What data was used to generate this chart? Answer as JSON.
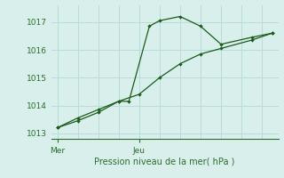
{
  "title": "Pression niveau de la mer( hPa )",
  "background_color": "#d8efec",
  "grid_color": "#b8ddd8",
  "line_color": "#1a5c1a",
  "marker_color": "#1a5c1a",
  "axis_color": "#2d6e2d",
  "text_color": "#2d6e2d",
  "ylim": [
    1012.8,
    1017.6
  ],
  "yticks": [
    1013,
    1014,
    1015,
    1016,
    1017
  ],
  "xlim": [
    -0.3,
    10.8
  ],
  "mer_x": 0.0,
  "jeu_x": 4.0,
  "line1_x": [
    0.0,
    1.0,
    2.0,
    3.0,
    3.5,
    4.5,
    5.0,
    6.0,
    7.0,
    8.0,
    9.5,
    10.5
  ],
  "line1_y": [
    1013.2,
    1013.55,
    1013.85,
    1014.15,
    1014.15,
    1016.85,
    1017.05,
    1017.2,
    1016.85,
    1016.2,
    1016.45,
    1016.6
  ],
  "line2_x": [
    0.0,
    1.0,
    2.0,
    3.0,
    4.0,
    5.0,
    6.0,
    7.0,
    8.0,
    9.5,
    10.5
  ],
  "line2_y": [
    1013.2,
    1013.45,
    1013.75,
    1014.15,
    1014.4,
    1015.0,
    1015.5,
    1015.85,
    1016.05,
    1016.35,
    1016.6
  ],
  "marker1_x": [
    0.0,
    1.0,
    2.0,
    3.0,
    3.5,
    4.5,
    5.0,
    6.0,
    7.0,
    8.0,
    9.5,
    10.5
  ],
  "marker1_y": [
    1013.2,
    1013.55,
    1013.85,
    1014.15,
    1014.15,
    1016.85,
    1017.05,
    1017.2,
    1016.85,
    1016.2,
    1016.45,
    1016.6
  ],
  "marker2_x": [
    0.0,
    1.0,
    2.0,
    3.0,
    4.0,
    5.0,
    6.0,
    7.0,
    8.0,
    9.5,
    10.5
  ],
  "marker2_y": [
    1013.2,
    1013.45,
    1013.75,
    1014.15,
    1014.4,
    1015.0,
    1015.5,
    1015.85,
    1016.05,
    1016.35,
    1016.6
  ],
  "figsize": [
    3.2,
    2.0
  ],
  "dpi": 100
}
